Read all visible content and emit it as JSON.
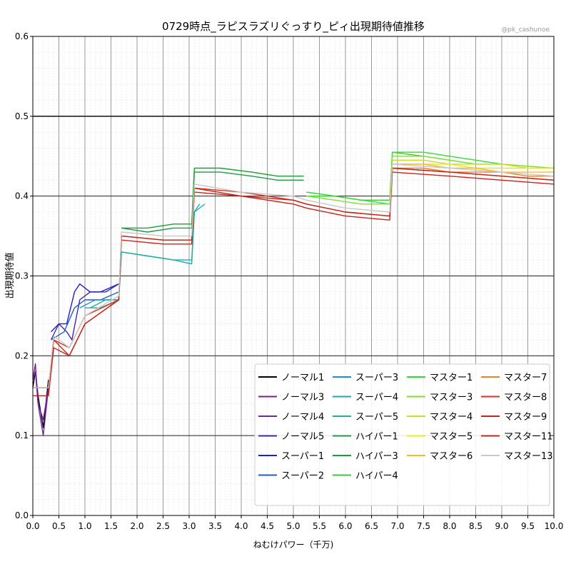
{
  "watermark": "@pk_cashunoe",
  "chart_data": {
    "type": "line",
    "title": "0729時点_ラピスラズリぐっすり_ピィ出現期待値推移",
    "xlabel": "ねむけパワー（千万)",
    "ylabel": "出現期待値",
    "xlim": [
      0.0,
      10.0
    ],
    "ylim": [
      0.0,
      0.6
    ],
    "x_ticks": [
      "0.0",
      "0.5",
      "1.0",
      "1.5",
      "2.0",
      "2.5",
      "3.0",
      "3.5",
      "4.0",
      "4.5",
      "5.0",
      "5.5",
      "6.0",
      "6.5",
      "7.0",
      "7.5",
      "8.0",
      "8.5",
      "9.0",
      "9.5",
      "10.0"
    ],
    "y_ticks": [
      "0.0",
      "0.1",
      "0.2",
      "0.3",
      "0.4",
      "0.5",
      "0.6"
    ],
    "grid": "major and minor",
    "legend_position": "lower-right",
    "legend_columns": 4,
    "series": [
      {
        "name": "ノーマル1",
        "color": "#000000",
        "points": [
          [
            0.0,
            0.16
          ],
          [
            0.05,
            0.18
          ],
          [
            0.1,
            0.15
          ],
          [
            0.2,
            0.11
          ],
          [
            0.3,
            0.17
          ]
        ]
      },
      {
        "name": "ノーマル3",
        "color": "#7a1f8c",
        "points": [
          [
            0.0,
            0.17
          ],
          [
            0.05,
            0.19
          ],
          [
            0.1,
            0.14
          ],
          [
            0.2,
            0.12
          ],
          [
            0.3,
            0.16
          ]
        ]
      },
      {
        "name": "ノーマル4",
        "color": "#6a2a9a",
        "points": [
          [
            0.0,
            0.17
          ],
          [
            0.05,
            0.18
          ],
          [
            0.1,
            0.14
          ],
          [
            0.2,
            0.1
          ],
          [
            0.3,
            0.16
          ]
        ]
      },
      {
        "name": "ノーマル5",
        "color": "#3b2aa8",
        "points": [
          [
            0.35,
            0.22
          ],
          [
            0.5,
            0.24
          ],
          [
            0.65,
            0.23
          ],
          [
            0.75,
            0.22
          ],
          [
            0.9,
            0.27
          ],
          [
            1.1,
            0.28
          ],
          [
            1.4,
            0.28
          ],
          [
            1.65,
            0.29
          ]
        ]
      },
      {
        "name": "スーパー1",
        "color": "#1f1fc8",
        "points": [
          [
            0.35,
            0.23
          ],
          [
            0.5,
            0.24
          ],
          [
            0.65,
            0.24
          ],
          [
            0.8,
            0.28
          ],
          [
            0.9,
            0.29
          ],
          [
            1.1,
            0.28
          ],
          [
            1.3,
            0.28
          ],
          [
            1.65,
            0.29
          ]
        ]
      },
      {
        "name": "スーパー2",
        "color": "#1f5fc8",
        "points": [
          [
            0.35,
            0.22
          ],
          [
            0.6,
            0.23
          ],
          [
            0.8,
            0.26
          ],
          [
            1.0,
            0.27
          ],
          [
            1.3,
            0.27
          ],
          [
            1.65,
            0.28
          ]
        ]
      },
      {
        "name": "スーパー3",
        "color": "#1f8fd0",
        "points": [
          [
            0.9,
            0.26
          ],
          [
            1.2,
            0.27
          ],
          [
            1.5,
            0.27
          ],
          [
            1.65,
            0.27
          ]
        ]
      },
      {
        "name": "スーパー4",
        "color": "#1fa8b8",
        "points": [
          [
            1.0,
            0.26
          ],
          [
            1.3,
            0.26
          ],
          [
            1.65,
            0.27
          ],
          [
            1.7,
            0.33
          ],
          [
            2.2,
            0.325
          ],
          [
            2.7,
            0.32
          ],
          [
            3.05,
            0.315
          ],
          [
            3.1,
            0.38
          ],
          [
            3.2,
            0.39
          ]
        ]
      },
      {
        "name": "スーパー5",
        "color": "#20b0a0",
        "points": [
          [
            1.1,
            0.26
          ],
          [
            1.4,
            0.27
          ],
          [
            1.65,
            0.27
          ],
          [
            1.7,
            0.33
          ],
          [
            2.2,
            0.325
          ],
          [
            2.7,
            0.32
          ],
          [
            3.05,
            0.32
          ],
          [
            3.1,
            0.38
          ],
          [
            3.3,
            0.39
          ]
        ]
      },
      {
        "name": "ハイパー1",
        "color": "#1f9a4a",
        "points": [
          [
            1.7,
            0.36
          ],
          [
            2.2,
            0.355
          ],
          [
            2.7,
            0.36
          ],
          [
            3.05,
            0.36
          ],
          [
            3.1,
            0.43
          ],
          [
            3.6,
            0.43
          ],
          [
            4.2,
            0.425
          ],
          [
            4.7,
            0.42
          ],
          [
            5.2,
            0.42
          ]
        ]
      },
      {
        "name": "ハイパー3",
        "color": "#1aa030",
        "points": [
          [
            1.7,
            0.36
          ],
          [
            2.2,
            0.36
          ],
          [
            2.7,
            0.365
          ],
          [
            3.05,
            0.365
          ],
          [
            3.1,
            0.435
          ],
          [
            3.6,
            0.435
          ],
          [
            4.2,
            0.43
          ],
          [
            4.7,
            0.425
          ],
          [
            5.2,
            0.425
          ]
        ]
      },
      {
        "name": "ハイパー4",
        "color": "#3cc83c",
        "points": [
          [
            5.25,
            0.405
          ],
          [
            5.8,
            0.4
          ],
          [
            6.3,
            0.395
          ],
          [
            6.85,
            0.395
          ],
          [
            6.9,
            0.455
          ],
          [
            7.5,
            0.45
          ],
          [
            8.0,
            0.445
          ],
          [
            8.5,
            0.44
          ]
        ]
      },
      {
        "name": "マスター1",
        "color": "#2ee02e",
        "points": [
          [
            5.25,
            0.4
          ],
          [
            5.8,
            0.4
          ],
          [
            6.3,
            0.395
          ],
          [
            6.85,
            0.39
          ],
          [
            6.9,
            0.455
          ],
          [
            7.5,
            0.455
          ],
          [
            8.0,
            0.45
          ],
          [
            8.5,
            0.445
          ],
          [
            9.0,
            0.44
          ]
        ]
      },
      {
        "name": "マスター3",
        "color": "#80e030",
        "points": [
          [
            5.25,
            0.4
          ],
          [
            5.8,
            0.395
          ],
          [
            6.3,
            0.39
          ],
          [
            6.85,
            0.39
          ],
          [
            6.9,
            0.45
          ],
          [
            7.5,
            0.45
          ],
          [
            8.0,
            0.445
          ],
          [
            8.5,
            0.44
          ],
          [
            9.0,
            0.44
          ],
          [
            10.0,
            0.435
          ]
        ]
      },
      {
        "name": "マスター4",
        "color": "#c8e020",
        "points": [
          [
            6.9,
            0.445
          ],
          [
            7.5,
            0.445
          ],
          [
            8.0,
            0.44
          ],
          [
            8.5,
            0.44
          ],
          [
            9.0,
            0.44
          ],
          [
            9.5,
            0.435
          ],
          [
            10.0,
            0.435
          ]
        ]
      },
      {
        "name": "マスター5",
        "color": "#e8e820",
        "points": [
          [
            6.9,
            0.44
          ],
          [
            7.5,
            0.44
          ],
          [
            8.0,
            0.44
          ],
          [
            8.5,
            0.435
          ],
          [
            9.0,
            0.435
          ],
          [
            9.5,
            0.435
          ],
          [
            10.0,
            0.435
          ]
        ]
      },
      {
        "name": "マスター6",
        "color": "#f0c020",
        "points": [
          [
            6.9,
            0.44
          ],
          [
            7.5,
            0.44
          ],
          [
            8.0,
            0.435
          ],
          [
            8.5,
            0.435
          ],
          [
            9.0,
            0.43
          ],
          [
            9.5,
            0.43
          ],
          [
            10.0,
            0.43
          ]
        ]
      },
      {
        "name": "マスター7",
        "color": "#f08020",
        "points": [
          [
            6.9,
            0.435
          ],
          [
            7.5,
            0.435
          ],
          [
            8.0,
            0.43
          ],
          [
            8.5,
            0.43
          ],
          [
            9.0,
            0.43
          ],
          [
            9.5,
            0.425
          ],
          [
            10.0,
            0.425
          ]
        ]
      },
      {
        "name": "マスター8",
        "color": "#e03020",
        "points": [
          [
            0.0,
            0.16
          ],
          [
            0.3,
            0.16
          ],
          [
            0.4,
            0.22
          ],
          [
            0.7,
            0.21
          ],
          [
            1.0,
            0.25
          ],
          [
            1.65,
            0.27
          ],
          [
            1.7,
            0.35
          ],
          [
            2.5,
            0.345
          ],
          [
            3.05,
            0.345
          ],
          [
            3.1,
            0.41
          ],
          [
            4.0,
            0.405
          ],
          [
            5.0,
            0.395
          ],
          [
            5.25,
            0.39
          ],
          [
            6.0,
            0.38
          ],
          [
            6.85,
            0.375
          ],
          [
            6.9,
            0.435
          ],
          [
            8.0,
            0.43
          ],
          [
            9.0,
            0.425
          ],
          [
            10.0,
            0.42
          ]
        ]
      },
      {
        "name": "マスター9",
        "color": "#d02018",
        "points": [
          [
            0.0,
            0.15
          ],
          [
            0.3,
            0.15
          ],
          [
            0.4,
            0.21
          ],
          [
            0.7,
            0.2
          ],
          [
            1.0,
            0.24
          ],
          [
            1.65,
            0.27
          ],
          [
            1.7,
            0.345
          ],
          [
            2.5,
            0.34
          ],
          [
            3.05,
            0.34
          ],
          [
            3.1,
            0.405
          ],
          [
            4.0,
            0.4
          ],
          [
            5.0,
            0.39
          ],
          [
            5.25,
            0.385
          ],
          [
            6.0,
            0.375
          ],
          [
            6.85,
            0.37
          ],
          [
            6.9,
            0.43
          ],
          [
            8.0,
            0.425
          ],
          [
            9.0,
            0.42
          ],
          [
            10.0,
            0.415
          ]
        ]
      },
      {
        "name": "マスター11",
        "color": "#c02818",
        "points": [
          [
            0.0,
            0.16
          ],
          [
            0.3,
            0.16
          ],
          [
            0.4,
            0.22
          ],
          [
            0.7,
            0.2
          ],
          [
            1.0,
            0.24
          ],
          [
            1.65,
            0.27
          ],
          [
            1.7,
            0.35
          ],
          [
            2.5,
            0.345
          ],
          [
            3.05,
            0.345
          ],
          [
            3.1,
            0.41
          ],
          [
            4.0,
            0.4
          ],
          [
            5.0,
            0.395
          ],
          [
            5.25,
            0.39
          ],
          [
            6.0,
            0.38
          ],
          [
            6.85,
            0.375
          ],
          [
            6.9,
            0.435
          ],
          [
            8.0,
            0.43
          ],
          [
            9.0,
            0.425
          ],
          [
            10.0,
            0.42
          ]
        ]
      },
      {
        "name": "マスター13",
        "color": "#c8c8c8",
        "points": [
          [
            0.0,
            0.16
          ],
          [
            0.3,
            0.16
          ],
          [
            0.4,
            0.225
          ],
          [
            0.7,
            0.21
          ],
          [
            1.0,
            0.25
          ],
          [
            1.65,
            0.275
          ],
          [
            1.7,
            0.355
          ],
          [
            2.5,
            0.35
          ],
          [
            3.05,
            0.35
          ],
          [
            3.1,
            0.415
          ],
          [
            4.0,
            0.405
          ],
          [
            5.0,
            0.4
          ],
          [
            5.25,
            0.395
          ],
          [
            6.0,
            0.385
          ],
          [
            6.85,
            0.38
          ],
          [
            6.9,
            0.44
          ],
          [
            8.0,
            0.435
          ],
          [
            9.0,
            0.43
          ],
          [
            10.0,
            0.425
          ]
        ]
      }
    ]
  }
}
